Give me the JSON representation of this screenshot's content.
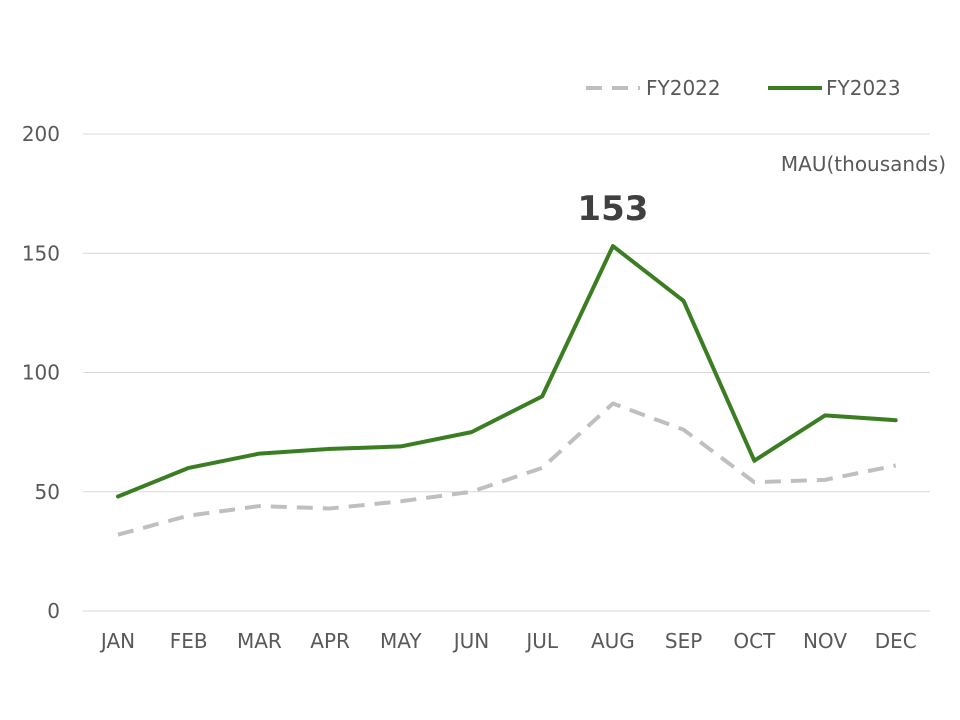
{
  "chart_data": {
    "type": "line",
    "title": "",
    "xlabel": "",
    "ylabel": "",
    "unit_label": "MAU(thousands)",
    "categories": [
      "JAN",
      "FEB",
      "MAR",
      "APR",
      "MAY",
      "JUN",
      "JUL",
      "AUG",
      "SEP",
      "OCT",
      "NOV",
      "DEC"
    ],
    "yticks": [
      "0",
      "50",
      "100",
      "150",
      "200"
    ],
    "ylim": [
      0,
      200
    ],
    "grid": true,
    "legend_position": "top-right",
    "series": [
      {
        "name": "FY2022",
        "color": "#bfbfbf",
        "style": "dashed",
        "values": [
          32,
          40,
          44,
          43,
          46,
          50,
          60,
          87,
          76,
          54,
          55,
          61
        ]
      },
      {
        "name": "FY2023",
        "color": "#3a7d22",
        "style": "solid",
        "values": [
          48,
          60,
          66,
          68,
          69,
          75,
          90,
          153,
          130,
          63,
          82,
          80
        ]
      }
    ],
    "annotations": [
      {
        "text": "153",
        "category": "AUG",
        "series": "FY2023"
      }
    ]
  }
}
